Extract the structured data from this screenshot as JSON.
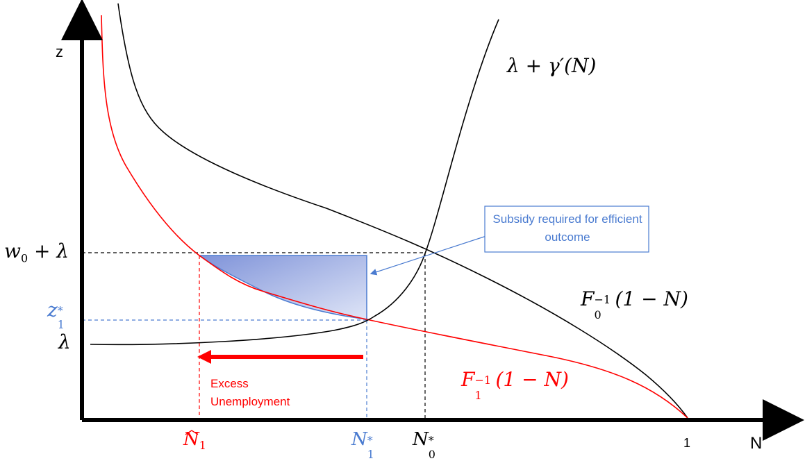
{
  "axes": {
    "y_label": "z",
    "x_label": "N",
    "x_tick_one": "1"
  },
  "y_ticks": {
    "w0_lambda": "w",
    "w0_lambda_sub": "0",
    "w0_lambda_rest": " + λ",
    "z1_star": "z",
    "z1_star_sub": "1",
    "z1_star_sup": "*",
    "lambda": "λ"
  },
  "x_ticks": {
    "n1_hat": "N",
    "n1_hat_sub": "1",
    "n1_star": "N",
    "n1_star_sub": "1",
    "n1_star_sup": "*",
    "n0_star": "N",
    "n0_star_sub": "0",
    "n0_star_sup": "*"
  },
  "curves": {
    "cost_label": "λ + γ′(N)",
    "f0_label_main": "F",
    "f0_label_sub": "0",
    "f0_label_sup": "−1",
    "f0_label_arg": "(1 − N)",
    "f1_label_main": "F",
    "f1_label_sub": "1",
    "f1_label_sup": "−1",
    "f1_label_arg": "(1 − N)"
  },
  "annotations": {
    "subsidy_text": "Subsidy required for efficient outcome",
    "excess_line1": "Excess",
    "excess_line2": "Unemployment"
  },
  "colors": {
    "black": "#000000",
    "red": "#ff0000",
    "blue": "#4a7bd0",
    "shade": "#8fa3e0"
  }
}
